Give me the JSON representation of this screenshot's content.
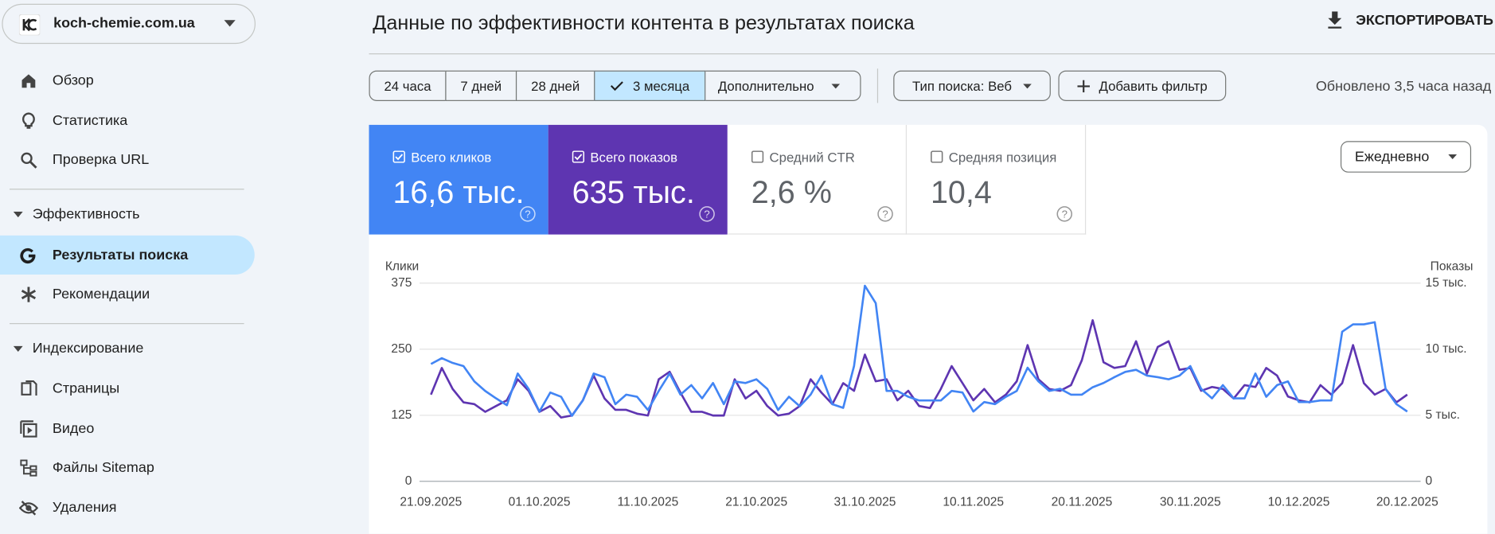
{
  "sidebar": {
    "property": "koch-chemie.com.ua",
    "overview": "Обзор",
    "insights": "Статистика",
    "url_inspection": "Проверка URL",
    "performance": "Эффективность",
    "search_results": "Результаты поиска",
    "recommendations": "Рекомендации",
    "indexing": "Индексирование",
    "pages": "Страницы",
    "video": "Видео",
    "sitemaps": "Файлы Sitemap",
    "removals": "Удаления"
  },
  "header": {
    "title": "Данные по эффективности контента в результатах поиска",
    "export": "ЭКСПОРТИРОВАТЬ"
  },
  "filters": {
    "ranges": [
      "24 часа",
      "7 дней",
      "28 дней",
      "3 месяца"
    ],
    "more": "Дополнительно",
    "search_type": "Тип поиска: Веб",
    "add_filter": "Добавить фильтр",
    "updated": "Обновлено 3,5 часа назад"
  },
  "metrics": [
    {
      "label": "Всего кликов",
      "value": "16,6 тыс.",
      "checked": true
    },
    {
      "label": "Всего показов",
      "value": "635 тыс.",
      "checked": true
    },
    {
      "label": "Средний CTR",
      "value": "2,6 %",
      "checked": false
    },
    {
      "label": "Средняя позиция",
      "value": "10,4",
      "checked": false
    }
  ],
  "granularity": "Ежедневно",
  "chart_data": {
    "type": "line",
    "y_label": "Клики",
    "y2_label": "Показы",
    "categories": [
      "21.09.2025",
      null,
      null,
      null,
      null,
      null,
      null,
      null,
      null,
      null,
      "01.10.2025",
      null,
      null,
      null,
      null,
      null,
      null,
      null,
      null,
      null,
      "11.10.2025",
      null,
      null,
      null,
      null,
      null,
      null,
      null,
      null,
      null,
      "21.10.2025",
      null,
      null,
      null,
      null,
      null,
      null,
      null,
      null,
      null,
      "31.10.2025",
      null,
      null,
      null,
      null,
      null,
      null,
      null,
      null,
      null,
      "10.11.2025",
      null,
      null,
      null,
      null,
      null,
      null,
      null,
      null,
      null,
      "20.11.2025",
      null,
      null,
      null,
      null,
      null,
      null,
      null,
      null,
      null,
      "30.11.2025",
      null,
      null,
      null,
      null,
      null,
      null,
      null,
      null,
      null,
      "10.12.2025",
      null,
      null,
      null,
      null,
      null,
      null,
      null,
      null,
      null,
      "20.12.2025"
    ],
    "series": [
      {
        "name": "Клики",
        "color": "#4285f4",
        "values": [
          222,
          233,
          224,
          218,
          189,
          171,
          157,
          144,
          204,
          175,
          132,
          168,
          160,
          124,
          153,
          204,
          197,
          146,
          164,
          160,
          135,
          171,
          204,
          164,
          182,
          157,
          186,
          146,
          189,
          186,
          193,
          175,
          135,
          160,
          142,
          164,
          200,
          146,
          139,
          218,
          370,
          337,
          171,
          171,
          160,
          153,
          153,
          153,
          171,
          168,
          132,
          150,
          146,
          160,
          171,
          215,
          189,
          171,
          175,
          164,
          164,
          178,
          186,
          197,
          207,
          211,
          200,
          197,
          193,
          200,
          218,
          175,
          157,
          182,
          157,
          157,
          204,
          160,
          182,
          189,
          150,
          150,
          153,
          153,
          283,
          297,
          297,
          301,
          175,
          146,
          132
        ]
      },
      {
        "name": "Показы",
        "color": "#5e35b1",
        "axis": "y2",
        "values": [
          6560,
          8580,
          6990,
          5980,
          5840,
          5260,
          5700,
          6130,
          7720,
          6850,
          5260,
          5700,
          4830,
          4980,
          6130,
          8000,
          6270,
          5410,
          5410,
          5120,
          4980,
          7720,
          8290,
          6710,
          5260,
          5260,
          4980,
          4980,
          7720,
          6270,
          6850,
          5700,
          4980,
          5120,
          5700,
          7720,
          6710,
          5840,
          7430,
          6850,
          9590,
          7570,
          7720,
          6130,
          6850,
          5700,
          5550,
          6990,
          8720,
          7430,
          6130,
          6990,
          5980,
          6560,
          7570,
          10310,
          7720,
          6990,
          6850,
          7280,
          9160,
          12190,
          9010,
          8580,
          8720,
          10600,
          8150,
          10170,
          10600,
          8440,
          8580,
          6850,
          7140,
          6990,
          6270,
          7280,
          7140,
          8580,
          8000,
          6420,
          6130,
          5980,
          7280,
          6560,
          7430,
          10310,
          7430,
          6560,
          6990,
          5980,
          6560
        ]
      }
    ],
    "ylim": [
      0,
      375
    ],
    "yticks": [
      0,
      125,
      250,
      375
    ],
    "y2lim": [
      0,
      15000
    ],
    "y2ticks": [
      0,
      {
        "value": 5000,
        "label": "5 тыс."
      },
      {
        "value": 10000,
        "label": "10 тыс."
      },
      {
        "value": 15000,
        "label": "15 тыс."
      }
    ],
    "grid": true
  }
}
